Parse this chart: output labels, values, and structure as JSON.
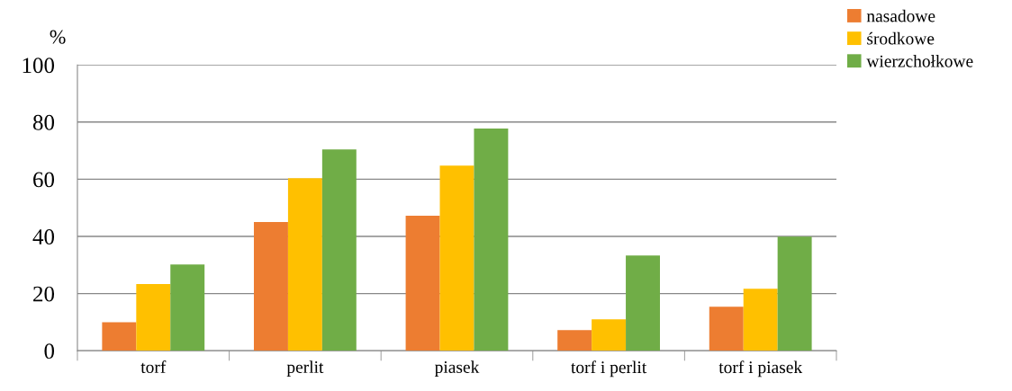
{
  "chart_data": {
    "type": "bar",
    "ylabel": "%",
    "categories": [
      "torf",
      "perlit",
      "piasek",
      "torf i perlit",
      "torf i piasek"
    ],
    "series": [
      {
        "name": "nasadowe",
        "color": "#ed7d31",
        "values": [
          10,
          45,
          47.2,
          7.2,
          15.4
        ]
      },
      {
        "name": "środkowe",
        "color": "#ffc000",
        "values": [
          23.3,
          60.4,
          64.8,
          11,
          21.7
        ]
      },
      {
        "name": "wierzchołkowe",
        "color": "#70ad47",
        "values": [
          30.2,
          70.4,
          77.7,
          33.3,
          39.9
        ]
      }
    ],
    "ylim": [
      0,
      100
    ],
    "yticks": [
      0,
      20,
      40,
      60,
      80,
      100
    ],
    "grid": "y",
    "legend": "top right"
  }
}
